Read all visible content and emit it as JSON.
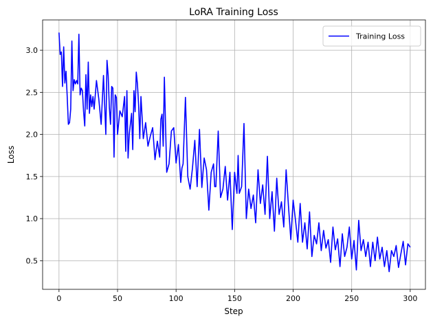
{
  "chart_data": {
    "type": "line",
    "title": "LoRA Training Loss",
    "xlabel": "Step",
    "ylabel": "Loss",
    "xlim": [
      -14,
      313
    ],
    "ylim": [
      0.16,
      3.36
    ],
    "xticks": [
      0,
      50,
      100,
      150,
      200,
      250,
      300
    ],
    "yticks": [
      0.5,
      1.0,
      1.5,
      2.0,
      2.5,
      3.0
    ],
    "ytick_labels": [
      "0.5",
      "1.0",
      "1.5",
      "2.0",
      "2.5",
      "3.0"
    ],
    "grid": true,
    "legend_position": "upper right",
    "series": [
      {
        "name": "Training Loss",
        "color": "#0000ff",
        "anchor_steps": [
          0,
          1,
          2,
          3,
          4,
          5,
          6,
          7,
          8,
          9,
          10,
          11,
          12,
          13,
          14,
          15,
          16,
          17,
          18,
          19,
          20,
          21,
          22,
          23,
          24,
          25,
          26,
          27,
          28,
          29,
          30,
          32,
          34,
          36,
          38,
          40,
          41,
          42,
          43,
          44,
          45,
          46,
          47,
          48,
          49,
          50,
          52,
          54,
          56,
          57,
          58,
          59,
          60,
          62,
          63,
          64,
          65,
          66,
          67,
          68,
          69,
          70,
          72,
          74,
          76,
          78,
          80,
          82,
          84,
          86,
          87,
          88,
          89,
          90,
          92,
          94,
          96,
          98,
          100,
          102,
          104,
          105,
          106,
          108,
          110,
          112,
          114,
          116,
          118,
          120,
          122,
          124,
          126,
          128,
          130,
          132,
          133,
          134,
          136,
          138,
          140,
          142,
          144,
          146,
          148,
          150,
          152,
          153,
          154,
          156,
          158,
          160,
          162,
          164,
          166,
          168,
          170,
          172,
          174,
          176,
          178,
          180,
          182,
          184,
          186,
          188,
          190,
          192,
          194,
          196,
          198,
          200,
          202,
          204,
          206,
          208,
          210,
          212,
          214,
          216,
          218,
          220,
          222,
          224,
          226,
          228,
          230,
          232,
          234,
          236,
          238,
          240,
          242,
          244,
          246,
          248,
          250,
          252,
          254,
          256,
          258,
          260,
          262,
          264,
          266,
          268,
          270,
          272,
          274,
          276,
          278,
          280,
          282,
          284,
          286,
          288,
          290,
          292,
          294,
          296,
          298,
          300
        ],
        "anchor_values": [
          3.21,
          2.95,
          2.98,
          2.57,
          3.04,
          2.61,
          2.75,
          2.45,
          2.12,
          2.14,
          2.3,
          3.11,
          2.52,
          2.65,
          2.6,
          2.64,
          2.6,
          3.19,
          2.47,
          2.55,
          2.52,
          2.27,
          2.1,
          2.71,
          2.3,
          2.86,
          2.25,
          2.47,
          2.33,
          2.45,
          2.3,
          2.64,
          2.42,
          2.12,
          2.7,
          2.0,
          2.88,
          2.7,
          2.32,
          2.12,
          2.57,
          2.55,
          1.73,
          2.47,
          2.44,
          2.0,
          2.28,
          2.21,
          2.45,
          1.8,
          2.52,
          1.72,
          2.0,
          2.25,
          1.82,
          2.52,
          2.27,
          2.74,
          2.6,
          2.35,
          1.95,
          2.45,
          1.95,
          2.14,
          1.86,
          1.98,
          2.08,
          1.7,
          1.92,
          1.73,
          2.18,
          2.24,
          1.86,
          2.68,
          1.55,
          1.65,
          2.04,
          2.08,
          1.66,
          1.88,
          1.43,
          1.6,
          1.65,
          2.44,
          1.5,
          1.35,
          1.6,
          1.93,
          1.38,
          2.06,
          1.37,
          1.72,
          1.58,
          1.1,
          1.55,
          1.65,
          1.38,
          1.38,
          2.04,
          1.25,
          1.35,
          1.62,
          1.22,
          1.55,
          0.87,
          1.55,
          1.3,
          1.75,
          1.3,
          1.38,
          2.13,
          1.0,
          1.35,
          1.12,
          1.28,
          0.95,
          1.58,
          1.18,
          1.4,
          1.05,
          1.74,
          1.0,
          1.32,
          0.85,
          1.48,
          1.05,
          1.2,
          0.9,
          1.58,
          1.15,
          0.75,
          1.22,
          0.98,
          0.72,
          1.18,
          0.72,
          0.95,
          0.64,
          1.08,
          0.55,
          0.8,
          0.7,
          0.95,
          0.62,
          0.86,
          0.65,
          0.75,
          0.48,
          0.9,
          0.63,
          0.76,
          0.43,
          0.82,
          0.55,
          0.66,
          0.9,
          0.52,
          0.74,
          0.39,
          0.98,
          0.62,
          0.75,
          0.55,
          0.72,
          0.43,
          0.72,
          0.5,
          0.78,
          0.52,
          0.66,
          0.43,
          0.62,
          0.37,
          0.62,
          0.55,
          0.68,
          0.42,
          0.58,
          0.73,
          0.45,
          0.7,
          0.66,
          0.5,
          0.6
        ]
      }
    ]
  }
}
